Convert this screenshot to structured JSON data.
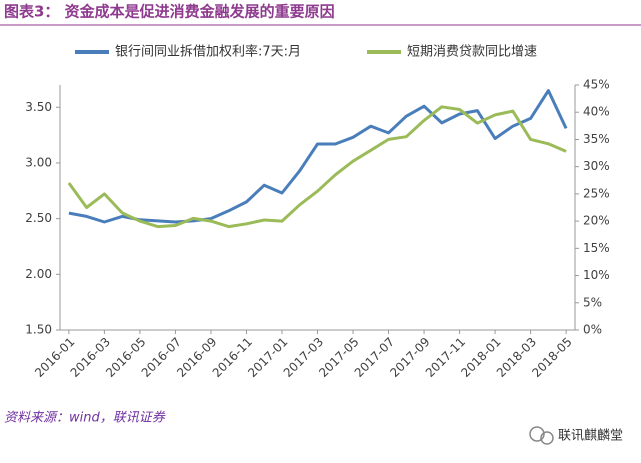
{
  "chart_data": {
    "type": "line",
    "title": "图表3： 资金成本是促进消费金融发展的重要原因",
    "source": "资料来源：wind，联讯证券",
    "watermark": "联讯麒麟堂",
    "categories": [
      "2016-01",
      null,
      "2016-03",
      null,
      "2016-05",
      null,
      "2016-07",
      null,
      "2016-09",
      null,
      "2016-11",
      null,
      "2017-01",
      null,
      "2017-03",
      null,
      "2017-05",
      null,
      "2017-07",
      null,
      "2017-09",
      null,
      "2017-11",
      null,
      "2018-01",
      null,
      "2018-03",
      null,
      "2018-05"
    ],
    "series": [
      {
        "name": "银行间同业拆借加权利率:7天:月",
        "color": "#4a7ebb",
        "axis": "y",
        "values": [
          2.55,
          2.52,
          2.47,
          2.52,
          2.49,
          2.48,
          2.47,
          2.48,
          2.5,
          2.57,
          2.65,
          2.8,
          2.73,
          2.93,
          3.17,
          3.17,
          3.23,
          3.33,
          3.27,
          3.42,
          3.51,
          3.36,
          3.44,
          3.47,
          3.22,
          3.33,
          3.4,
          3.65,
          3.31
        ]
      },
      {
        "name": "短期消费贷款同比增速",
        "color": "#9bbb59",
        "axis": "y2",
        "values": [
          27,
          22.5,
          25,
          21.5,
          20,
          19,
          19.2,
          20.5,
          20,
          19,
          19.5,
          20.2,
          20,
          23,
          25.5,
          28.5,
          31,
          33,
          35,
          35.5,
          38.5,
          41,
          40.5,
          38,
          39.5,
          40.2,
          35,
          34.2,
          32.8
        ]
      }
    ],
    "ylim": [
      1.5,
      3.7
    ],
    "yticks": [
      {
        "value": 1.5,
        "label": "1.50"
      },
      {
        "value": 2,
        "label": "2.00"
      },
      {
        "value": 2.5,
        "label": "2.50"
      },
      {
        "value": 3,
        "label": "3.00"
      },
      {
        "value": 3.5,
        "label": "3.50"
      }
    ],
    "y2lim": [
      0,
      45
    ],
    "y2ticks": [
      {
        "value": 0,
        "label": "0%"
      },
      {
        "value": 5,
        "label": "5%"
      },
      {
        "value": 10,
        "label": "10%"
      },
      {
        "value": 15,
        "label": "15%"
      },
      {
        "value": 20,
        "label": "20%"
      },
      {
        "value": 25,
        "label": "25%"
      },
      {
        "value": 30,
        "label": "30%"
      },
      {
        "value": 35,
        "label": "35%"
      },
      {
        "value": 40,
        "label": "40%"
      },
      {
        "value": 45,
        "label": "45%"
      }
    ],
    "grid": false,
    "legend": "top"
  }
}
